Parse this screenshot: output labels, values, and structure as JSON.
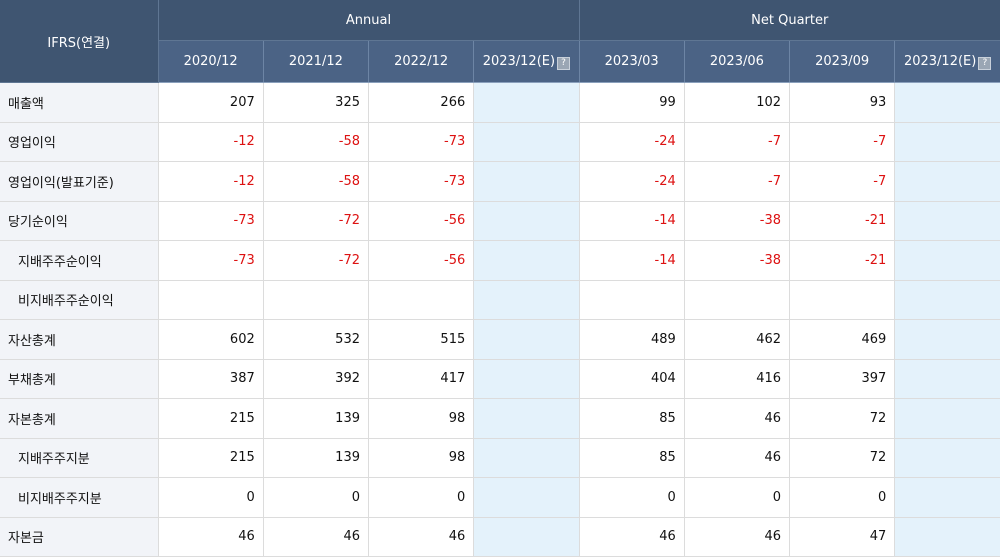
{
  "header": {
    "corner_label": "IFRS(연결)",
    "group_annual": "Annual",
    "group_quarter": "Net Quarter",
    "annual_periods": [
      "2020/12",
      "2021/12",
      "2022/12",
      "2023/12(E)"
    ],
    "quarter_periods": [
      "2023/03",
      "2023/06",
      "2023/09",
      "2023/12(E)"
    ]
  },
  "rows": [
    {
      "label": "매출액",
      "values": [
        "207",
        "325",
        "266",
        "",
        "99",
        "102",
        "93",
        ""
      ]
    },
    {
      "label": "영업이익",
      "values": [
        "-12",
        "-58",
        "-73",
        "",
        "-24",
        "-7",
        "-7",
        ""
      ]
    },
    {
      "label": "영업이익(발표기준)",
      "values": [
        "-12",
        "-58",
        "-73",
        "",
        "-24",
        "-7",
        "-7",
        ""
      ]
    },
    {
      "label": "당기순이익",
      "values": [
        "-73",
        "-72",
        "-56",
        "",
        "-14",
        "-38",
        "-21",
        ""
      ]
    },
    {
      "label": "지배주주순이익",
      "values": [
        "-73",
        "-72",
        "-56",
        "",
        "-14",
        "-38",
        "-21",
        ""
      ]
    },
    {
      "label": "비지배주주순이익",
      "values": [
        "",
        "",
        "",
        "",
        "",
        "",
        "",
        ""
      ]
    },
    {
      "label": "자산총계",
      "values": [
        "602",
        "532",
        "515",
        "",
        "489",
        "462",
        "469",
        ""
      ]
    },
    {
      "label": "부채총계",
      "values": [
        "387",
        "392",
        "417",
        "",
        "404",
        "416",
        "397",
        ""
      ]
    },
    {
      "label": "자본총계",
      "values": [
        "215",
        "139",
        "98",
        "",
        "85",
        "46",
        "72",
        ""
      ]
    },
    {
      "label": "지배주주지분",
      "values": [
        "215",
        "139",
        "98",
        "",
        "85",
        "46",
        "72",
        ""
      ]
    },
    {
      "label": "비지배주주지분",
      "values": [
        "0",
        "0",
        "0",
        "",
        "0",
        "0",
        "0",
        ""
      ]
    },
    {
      "label": "자본금",
      "values": [
        "46",
        "46",
        "46",
        "",
        "46",
        "46",
        "47",
        ""
      ]
    }
  ],
  "colors": {
    "header_bg": "#3f5571",
    "subheader_bg": "#4b6385",
    "label_bg": "#f2f4f8",
    "estimate_bg": "#e4f2fb",
    "negative_text": "#dd1111"
  },
  "icons": {
    "estimate_info": "help-icon"
  }
}
